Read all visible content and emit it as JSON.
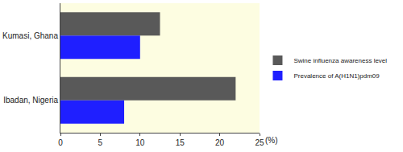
{
  "chart_data": {
    "type": "bar",
    "orientation": "horizontal",
    "categories": [
      "Kumasi, Ghana",
      "Ibadan, Nigeria"
    ],
    "series": [
      {
        "name": "Swine influenza awareness level",
        "color": "#595959",
        "values": [
          12.5,
          22
        ]
      },
      {
        "name": "Prevalence of A(H1N1)pdm09",
        "color": "#1f1fff",
        "values": [
          10,
          8
        ]
      }
    ],
    "x_label": "(%)",
    "xlim": [
      0,
      25
    ],
    "xticks": [
      0,
      5,
      10,
      15,
      20,
      25
    ],
    "grid": false,
    "legend": "right"
  }
}
